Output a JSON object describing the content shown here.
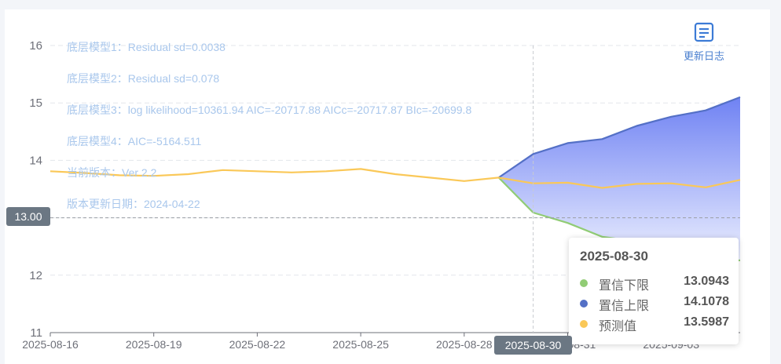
{
  "colors": {
    "lower": "#91cc75",
    "upper": "#5470c6",
    "predicted": "#fac858",
    "band_top": "#6f82f3",
    "band_bottom": "#eef1ff",
    "note_text": "#a9c7ec"
  },
  "annotations": [
    "底层模型1：Residual sd=0.0038",
    "底层模型2：Residual sd=0.078",
    "底层模型3：log likelihood=10361.94 AIC=-20717.88 AICc=-20717.87 BIc=-20699.8",
    "底层模型4：AIC=-5164.511",
    "当前版本：Ver 2.2",
    "版本更新日期：2024-04-22"
  ],
  "update_log": {
    "label": "更新日志",
    "icon": "document-icon"
  },
  "tooltip": {
    "title": "2025-08-30",
    "rows": [
      {
        "name": "置信下限",
        "value": "13.0943",
        "color": "#91cc75"
      },
      {
        "name": "置信上限",
        "value": "14.1078",
        "color": "#5470c6"
      },
      {
        "name": "预测值",
        "value": "13.5987",
        "color": "#fac858"
      }
    ]
  },
  "pointer": {
    "y_value": "13.00",
    "x_value": "2025-08-30"
  },
  "chart_data": {
    "type": "line",
    "ylim": [
      11,
      16
    ],
    "yticks": [
      11,
      12,
      13,
      14,
      15,
      16
    ],
    "xlim": [
      "2025-08-16",
      "2025-09-05"
    ],
    "xtick_labels": [
      "2025-08-16",
      "2025-08-19",
      "2025-08-22",
      "2025-08-25",
      "2025-08-28",
      "2025-08-31",
      "2025-09-03"
    ],
    "grid": true,
    "series": [
      {
        "name": "预测值",
        "x": [
          "2025-08-16",
          "2025-08-17",
          "2025-08-18",
          "2025-08-19",
          "2025-08-20",
          "2025-08-21",
          "2025-08-22",
          "2025-08-23",
          "2025-08-24",
          "2025-08-25",
          "2025-08-26",
          "2025-08-27",
          "2025-08-28",
          "2025-08-29",
          "2025-08-30",
          "2025-08-31",
          "2025-09-01",
          "2025-09-02",
          "2025-09-03",
          "2025-09-04",
          "2025-09-05"
        ],
        "values": [
          13.81,
          13.78,
          13.74,
          13.73,
          13.76,
          13.83,
          13.81,
          13.79,
          13.81,
          13.85,
          13.76,
          13.7,
          13.64,
          13.7,
          13.6,
          13.61,
          13.52,
          13.59,
          13.6,
          13.53,
          13.66
        ]
      },
      {
        "name": "置信上限",
        "x": [
          "2025-08-29",
          "2025-08-30",
          "2025-08-31",
          "2025-09-01",
          "2025-09-02",
          "2025-09-03",
          "2025-09-04",
          "2025-09-05"
        ],
        "values": [
          13.7,
          14.11,
          14.3,
          14.37,
          14.6,
          14.76,
          14.87,
          15.1
        ]
      },
      {
        "name": "置信下限",
        "x": [
          "2025-08-29",
          "2025-08-30",
          "2025-08-31",
          "2025-09-01",
          "2025-09-02",
          "2025-09-03",
          "2025-09-04",
          "2025-09-05"
        ],
        "values": [
          13.7,
          13.09,
          12.91,
          12.67,
          12.59,
          12.43,
          12.21,
          12.26
        ]
      }
    ]
  }
}
